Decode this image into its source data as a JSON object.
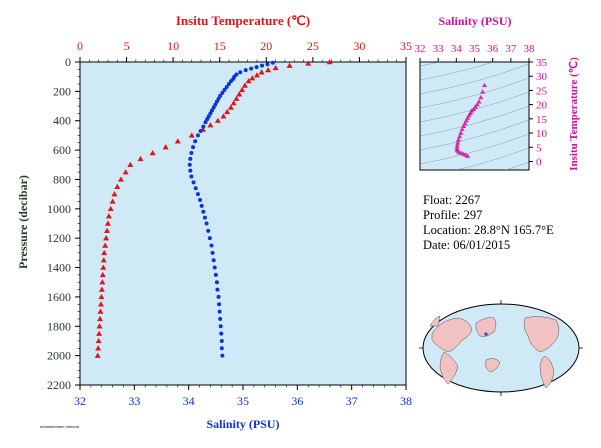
{
  "colors": {
    "plot_bg": "#cfeaf6",
    "temperature": "#e0141a",
    "salinity": "#1030d8",
    "ts_accent": "#d0109e",
    "axis_dark": "#1f3a1f",
    "land": "#f2c2c2",
    "ocean": "#cfeaf6"
  },
  "labels": {
    "top_axis_title": "Insitu Temperature (℃)",
    "bottom_axis_title": "Salinity (PSU)",
    "left_axis_title": "Pressure (decibar)",
    "ts_top_title": "Salinity (PSU)",
    "ts_right_title": "Insitu Temperature (℃)",
    "tiny_note": "nnnnnnnnnnn nnnnnn"
  },
  "info": {
    "float": "Float:  2267",
    "profile": "Profile:  297",
    "location": "Location:  28.8°N  165.7°E",
    "date": "Date:  06/01/2015"
  },
  "chart_data": [
    {
      "type": "scatter",
      "ylabel": "Pressure (decibar)",
      "ylim": [
        2200,
        0
      ],
      "y_ticks": [
        0,
        200,
        400,
        600,
        800,
        1000,
        1200,
        1400,
        1600,
        1800,
        2000,
        2200
      ],
      "top_axis": {
        "title": "Insitu Temperature (℃)",
        "range": [
          0,
          35
        ],
        "ticks": [
          0,
          5,
          10,
          15,
          20,
          25,
          30,
          35
        ]
      },
      "bottom_axis": {
        "title": "Salinity (PSU)",
        "range": [
          32,
          38
        ],
        "ticks": [
          32,
          33,
          34,
          35,
          36,
          37,
          38
        ]
      },
      "grid": false,
      "series": [
        {
          "marker": "triangle",
          "axis": "top",
          "points": [
            [
              26.8,
              0
            ],
            [
              24.5,
              10
            ],
            [
              22.5,
              25
            ],
            [
              21.0,
              40
            ],
            [
              20.2,
              55
            ],
            [
              19.5,
              70
            ],
            [
              19.0,
              90
            ],
            [
              18.5,
              110
            ],
            [
              18.1,
              130
            ],
            [
              17.7,
              160
            ],
            [
              17.4,
              190
            ],
            [
              17.1,
              220
            ],
            [
              16.8,
              250
            ],
            [
              16.5,
              280
            ],
            [
              16.2,
              310
            ],
            [
              15.8,
              340
            ],
            [
              15.4,
              370
            ],
            [
              14.8,
              400
            ],
            [
              14.0,
              430
            ],
            [
              13.2,
              460
            ],
            [
              12.0,
              500
            ],
            [
              10.5,
              540
            ],
            [
              9.2,
              580
            ],
            [
              7.8,
              620
            ],
            [
              6.5,
              660
            ],
            [
              5.4,
              700
            ],
            [
              4.9,
              750
            ],
            [
              4.4,
              800
            ],
            [
              4.0,
              850
            ],
            [
              3.7,
              900
            ],
            [
              3.5,
              950
            ],
            [
              3.3,
              1000
            ],
            [
              3.1,
              1050
            ],
            [
              3.0,
              1100
            ],
            [
              2.9,
              1150
            ],
            [
              2.8,
              1200
            ],
            [
              2.7,
              1250
            ],
            [
              2.6,
              1300
            ],
            [
              2.55,
              1350
            ],
            [
              2.5,
              1400
            ],
            [
              2.45,
              1450
            ],
            [
              2.4,
              1500
            ],
            [
              2.35,
              1550
            ],
            [
              2.3,
              1600
            ],
            [
              2.25,
              1650
            ],
            [
              2.2,
              1700
            ],
            [
              2.15,
              1750
            ],
            [
              2.1,
              1800
            ],
            [
              2.05,
              1850
            ],
            [
              2.0,
              1900
            ],
            [
              1.95,
              1950
            ],
            [
              1.9,
              2000
            ]
          ]
        },
        {
          "marker": "circle",
          "axis": "bottom",
          "points": [
            [
              35.55,
              5
            ],
            [
              35.45,
              15
            ],
            [
              35.35,
              25
            ],
            [
              35.25,
              35
            ],
            [
              35.15,
              45
            ],
            [
              35.05,
              55
            ],
            [
              34.95,
              70
            ],
            [
              34.88,
              85
            ],
            [
              34.84,
              100
            ],
            [
              34.82,
              115
            ],
            [
              34.78,
              130
            ],
            [
              34.74,
              150
            ],
            [
              34.7,
              170
            ],
            [
              34.66,
              190
            ],
            [
              34.62,
              210
            ],
            [
              34.58,
              230
            ],
            [
              34.55,
              250
            ],
            [
              34.52,
              270
            ],
            [
              34.49,
              290
            ],
            [
              34.46,
              310
            ],
            [
              34.43,
              330
            ],
            [
              34.4,
              350
            ],
            [
              34.37,
              370
            ],
            [
              34.34,
              390
            ],
            [
              34.31,
              410
            ],
            [
              34.27,
              440
            ],
            [
              34.22,
              470
            ],
            [
              34.17,
              500
            ],
            [
              34.12,
              540
            ],
            [
              34.08,
              580
            ],
            [
              34.05,
              620
            ],
            [
              34.03,
              660
            ],
            [
              34.02,
              700
            ],
            [
              34.03,
              740
            ],
            [
              34.05,
              780
            ],
            [
              34.09,
              820
            ],
            [
              34.13,
              860
            ],
            [
              34.17,
              900
            ],
            [
              34.21,
              940
            ],
            [
              34.24,
              980
            ],
            [
              34.27,
              1020
            ],
            [
              34.3,
              1060
            ],
            [
              34.33,
              1100
            ],
            [
              34.36,
              1150
            ],
            [
              34.39,
              1200
            ],
            [
              34.42,
              1250
            ],
            [
              34.44,
              1300
            ],
            [
              34.46,
              1350
            ],
            [
              34.48,
              1400
            ],
            [
              34.5,
              1450
            ],
            [
              34.52,
              1500
            ],
            [
              34.53,
              1550
            ],
            [
              34.55,
              1600
            ],
            [
              34.56,
              1650
            ],
            [
              34.57,
              1700
            ],
            [
              34.58,
              1750
            ],
            [
              34.59,
              1800
            ],
            [
              34.6,
              1850
            ],
            [
              34.61,
              1900
            ],
            [
              34.61,
              1950
            ],
            [
              34.62,
              2000
            ]
          ]
        }
      ]
    },
    {
      "type": "scatter",
      "xlabel": "Salinity (PSU)",
      "ylabel": "Insitu Temperature (℃)",
      "xlim": [
        32,
        38
      ],
      "ylim": [
        -3,
        35
      ],
      "x_ticks": [
        32,
        33,
        34,
        35,
        36,
        37,
        38
      ],
      "y_ticks": [
        0,
        5,
        10,
        15,
        20,
        25,
        30,
        35
      ],
      "series": [
        {
          "marker": "triangle",
          "points": [
            [
              35.55,
              26.8
            ],
            [
              35.45,
              24.5
            ],
            [
              35.35,
              22.5
            ],
            [
              35.25,
              21.0
            ],
            [
              35.15,
              20.0
            ],
            [
              35.05,
              19.2
            ],
            [
              34.95,
              18.4
            ],
            [
              34.85,
              17.8
            ],
            [
              34.78,
              17.0
            ],
            [
              34.7,
              16.2
            ],
            [
              34.62,
              15.3
            ],
            [
              34.55,
              14.4
            ],
            [
              34.48,
              13.4
            ],
            [
              34.4,
              12.4
            ],
            [
              34.32,
              11.3
            ],
            [
              34.25,
              10.0
            ],
            [
              34.18,
              8.8
            ],
            [
              34.12,
              7.6
            ],
            [
              34.08,
              6.5
            ],
            [
              34.05,
              5.5
            ],
            [
              34.03,
              4.6
            ],
            [
              34.05,
              3.9
            ],
            [
              34.12,
              3.3
            ],
            [
              34.25,
              3.0
            ],
            [
              34.38,
              2.7
            ],
            [
              34.5,
              2.3
            ],
            [
              34.62,
              1.9
            ]
          ]
        }
      ]
    }
  ]
}
